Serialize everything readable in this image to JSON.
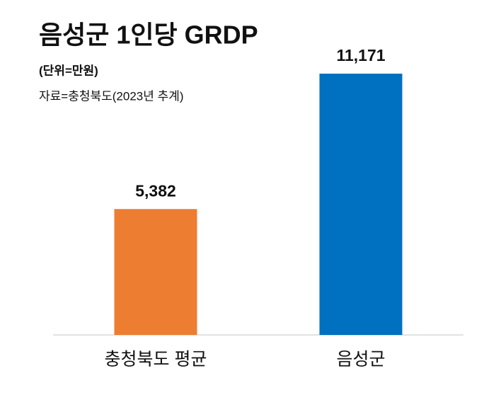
{
  "chart_data": {
    "type": "bar",
    "title": "음성군 1인당 GRDP",
    "subtitle": "(단위=만원)",
    "source": "자료=충청북도(2023년 추계)",
    "categories": [
      "충청북도 평균",
      "음성군"
    ],
    "values": [
      5382,
      11171
    ],
    "value_labels": [
      "5,382",
      "11,171"
    ],
    "colors": [
      "#ed7d31",
      "#0070c0"
    ]
  }
}
